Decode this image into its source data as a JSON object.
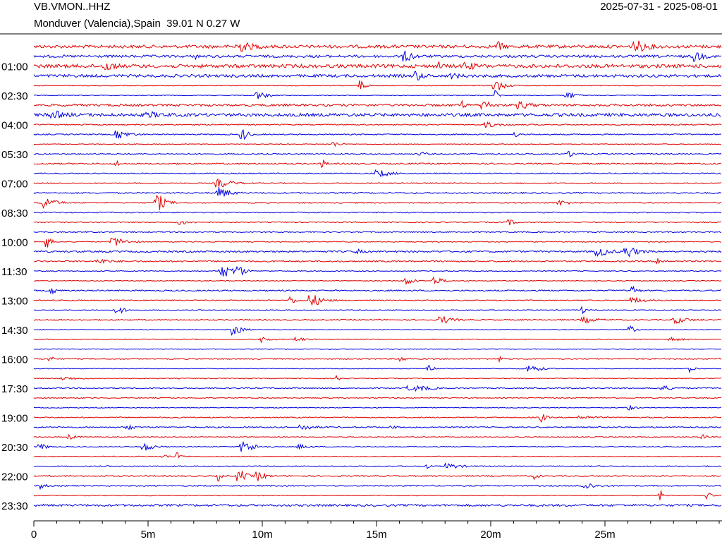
{
  "header": {
    "station": "VB.VMON..HHZ",
    "location": "Monduver (Valencia),Spain  39.01 N 0.27 W",
    "date_range": "2025-07-31 - 2025-08-01"
  },
  "chart_data": {
    "type": "helicorder",
    "xlim": [
      0,
      30
    ],
    "xticks": [
      0,
      {
        "value": 5,
        "label": "5m"
      },
      {
        "value": 10,
        "label": "10m"
      },
      {
        "value": 15,
        "label": "15m"
      },
      {
        "value": 20,
        "label": "20m"
      },
      {
        "value": 25,
        "label": "25m"
      }
    ],
    "minor_xticks": [
      0,
      1,
      2,
      3,
      4,
      5,
      6,
      7,
      8,
      9,
      10,
      11,
      12,
      13,
      14,
      15,
      16,
      17,
      18,
      19,
      20,
      21,
      22,
      23,
      24,
      25,
      26,
      27,
      28,
      29,
      30
    ],
    "ylim": [
      0,
      23.5
    ],
    "row_interval": 0.5,
    "yticks": [
      {
        "value": 1,
        "label": "01:00"
      },
      {
        "value": 2.5,
        "label": "02:30"
      },
      {
        "value": 4,
        "label": "04:00"
      },
      {
        "value": 5.5,
        "label": "05:30"
      },
      {
        "value": 7,
        "label": "07:00"
      },
      {
        "value": 8.5,
        "label": "08:30"
      },
      {
        "value": 10,
        "label": "10:00"
      },
      {
        "value": 11.5,
        "label": "11:30"
      },
      {
        "value": 13,
        "label": "13:00"
      },
      {
        "value": 14.5,
        "label": "14:30"
      },
      {
        "value": 16,
        "label": "16:00"
      },
      {
        "value": 17.5,
        "label": "17:30"
      },
      {
        "value": 19,
        "label": "19:00"
      },
      {
        "value": 20.5,
        "label": "20:30"
      },
      {
        "value": 22,
        "label": "22:00"
      },
      {
        "value": 23.5,
        "label": "23:30"
      }
    ],
    "row_colors": [
      "#e00000",
      "#0000e0"
    ]
  }
}
